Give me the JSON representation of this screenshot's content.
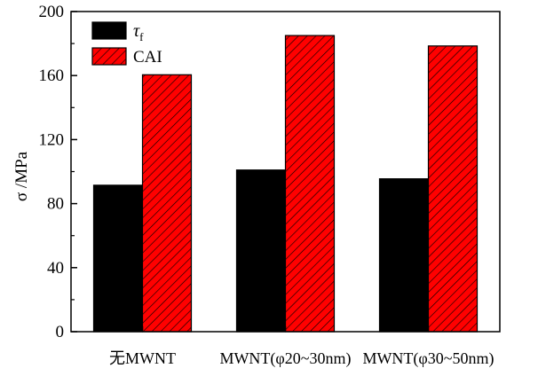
{
  "chart_data": {
    "type": "bar",
    "categories": [
      "无MWNT",
      "MWNT(φ20~30nm)",
      "MWNT(φ30~50nm)"
    ],
    "series": [
      {
        "name": "τf",
        "name_main": "τ",
        "name_sub": "f",
        "color": "#000000",
        "pattern": "solid",
        "values": [
          91.5,
          101,
          95.5
        ]
      },
      {
        "name": "CAI",
        "name_main": "CAI",
        "name_sub": "",
        "color": "#ff0000",
        "pattern": "hatched",
        "values": [
          160.5,
          185,
          178.5
        ]
      }
    ],
    "title": "",
    "xlabel": "",
    "ylabel": "σ /MPa",
    "ylim": [
      0,
      200
    ],
    "yticks": [
      0,
      40,
      80,
      120,
      160,
      200
    ],
    "legend": "top-left",
    "grid": false
  }
}
